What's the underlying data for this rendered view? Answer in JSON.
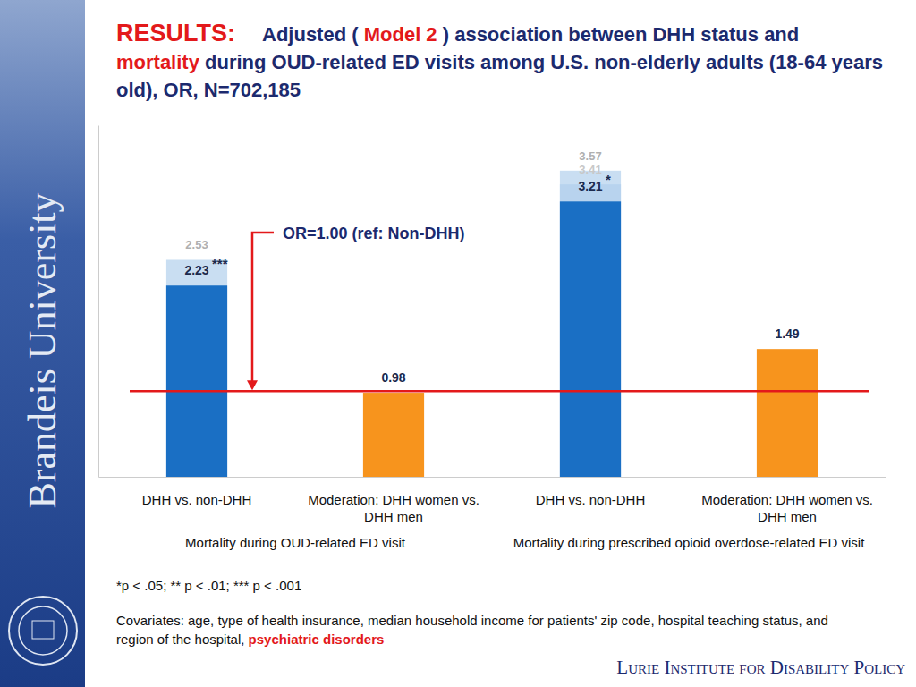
{
  "chart_data": {
    "type": "bar",
    "title_parts": [
      {
        "text": "RESULTS:",
        "color": "#e3191b"
      },
      {
        "text": "Adjusted (",
        "color": "#1c2a6e"
      },
      {
        "text": "Model 2",
        "color": "#e3191b"
      },
      {
        "text": ") association between DHH status and",
        "color": "#1c2a6e"
      },
      {
        "text": "mortality",
        "color": "#e3191b"
      },
      {
        "text": "during OUD-related ED visits among U.S. non-elderly adults (18-64 years old), OR, N=702,185",
        "color": "#1c2a6e"
      }
    ],
    "categories": [
      "DHH vs. non-DHH",
      "Moderation: DHH women vs. DHH men",
      "DHH vs. non-DHH",
      "Moderation: DHH women vs. DHH men"
    ],
    "group_labels": [
      "Mortality during OUD-related ED visit",
      "Mortality during prescribed opioid overdose-related ED visit"
    ],
    "series": [
      {
        "color": "#c9def2",
        "values": [
          2.53,
          null,
          3.57,
          null
        ]
      },
      {
        "color": "#b8d3ee",
        "values": [
          null,
          null,
          3.41,
          null
        ]
      },
      {
        "colors": [
          "#1a6fc4",
          "#f7941d",
          "#1a6fc4",
          "#f7941d"
        ],
        "values": [
          2.23,
          0.98,
          3.21,
          1.49
        ]
      }
    ],
    "significance": [
      "***",
      null,
      "*",
      null
    ],
    "reference_line": {
      "value": 1.0,
      "label": "OR=1.00 (ref: Non-DHH)"
    },
    "ylim": [
      0,
      4.1
    ],
    "yticks": [],
    "tick_labels": "x",
    "grid": false,
    "data_labels": true,
    "footnote": "*p < .05; ** p < .01; *** p < .001",
    "covariates_parts": [
      {
        "text": "Covariates: age, type of health insurance, median household income for patients' zip code, hospital teaching status, and region of the hospital,",
        "color": "#111111"
      },
      {
        "text": "psychiatric disorders",
        "color": "#e3191b"
      }
    ],
    "branding": "Brandeis University",
    "footer": "Lurie Institute for Disability Policy"
  }
}
